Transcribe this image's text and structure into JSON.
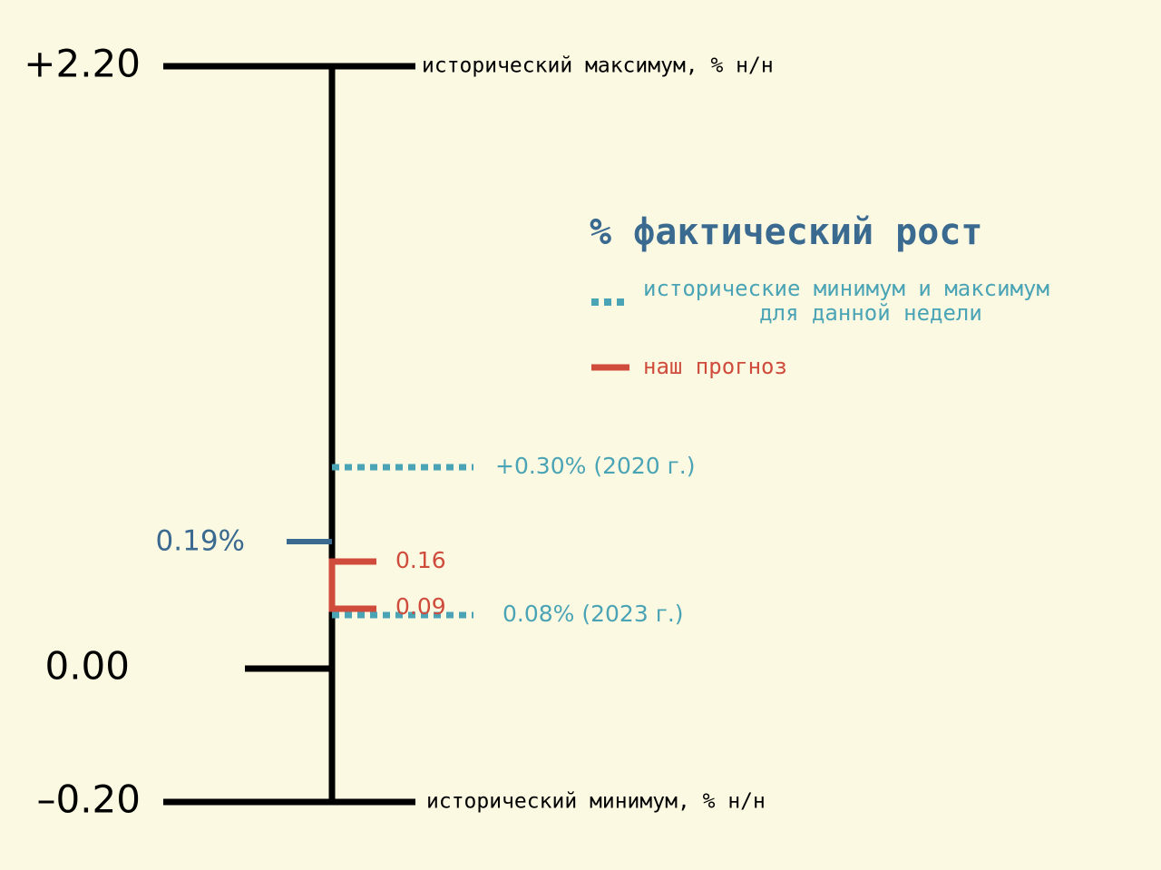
{
  "colors": {
    "background": "#fcf9e2",
    "axis": "#000000",
    "actual": "#3b6a90",
    "historical": "#4aa4b6",
    "forecast": "#cf4b3c"
  },
  "chart_data": {
    "type": "scale",
    "unit": "%",
    "range": [
      -0.2,
      2.2
    ],
    "scale_labels": {
      "max": "+2.20",
      "zero": "0.00",
      "min": "–0.20"
    },
    "scale_values": {
      "max": 2.2,
      "zero": 0.0,
      "min": -0.2
    },
    "axis_descriptions": {
      "max": "исторический максимум, % н/н",
      "min": "исторический минимум, % н/н"
    },
    "actual": {
      "value": 0.19,
      "label": "0.19%"
    },
    "historical_week": {
      "max": {
        "value": 0.3,
        "label": "+0.30% (2020 г.)"
      },
      "min": {
        "value": 0.08,
        "label": "0.08% (2023 г.)"
      }
    },
    "forecast": {
      "high": {
        "value": 0.16,
        "label": "0.16"
      },
      "low": {
        "value": 0.09,
        "label": "0.09"
      }
    },
    "legend": {
      "title": "% фактический рост",
      "historical_line1": "исторические минимум и максимум",
      "historical_line2": "для данной недели",
      "forecast": "наш прогноз"
    }
  }
}
